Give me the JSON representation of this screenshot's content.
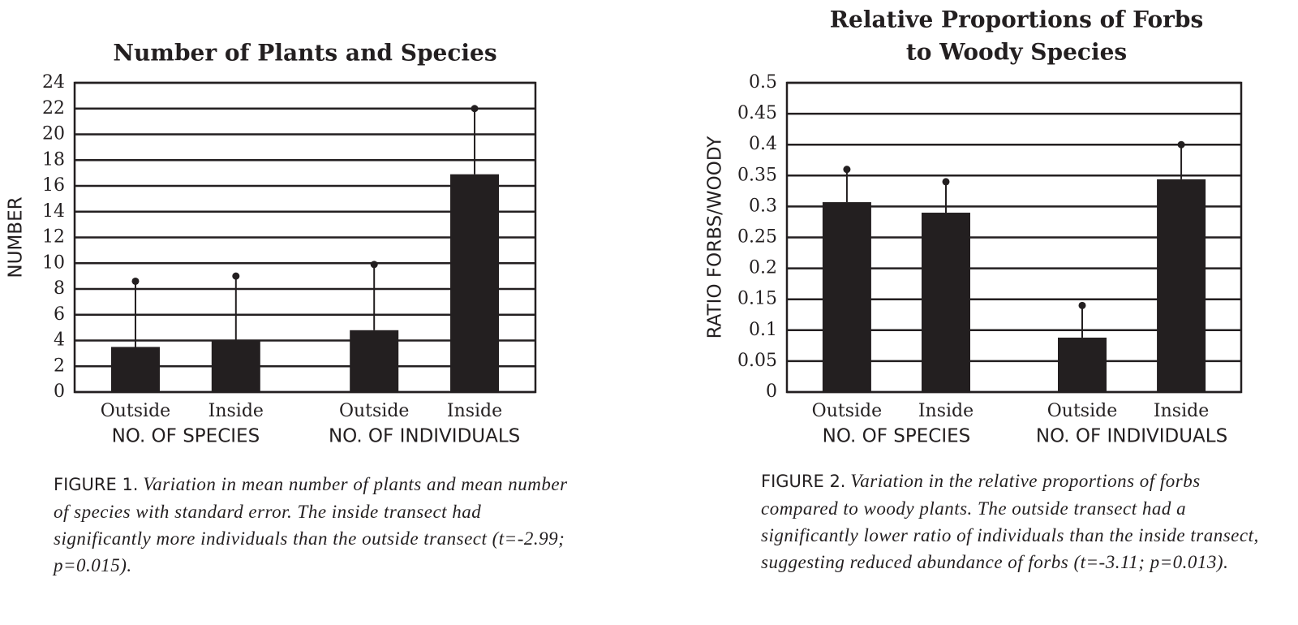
{
  "chart_data": [
    {
      "type": "bar",
      "title": [
        "Number of Plants and Species"
      ],
      "y_label": "NUMBER",
      "categories": [
        "Outside",
        "Inside",
        "Outside",
        "Inside"
      ],
      "group_labels": [
        "NO. OF SPECIES",
        "NO. OF INDIVIDUALS"
      ],
      "values": [
        3.5,
        4.0,
        4.8,
        16.9
      ],
      "errors": [
        5.1,
        5.0,
        5.1,
        5.1
      ],
      "color": "#231f20",
      "ylim": [
        0,
        24
      ],
      "yticks": [
        0,
        2,
        4,
        6,
        8,
        10,
        12,
        14,
        16,
        18,
        20,
        22,
        24
      ],
      "grid": true,
      "caption_label": "FIGURE 1.",
      "caption_text": "Variation in mean number of plants and mean number of species with standard error. The inside transect had significantly more individuals than the outside transect (t=-2.99; p=0.015)."
    },
    {
      "type": "bar",
      "title": [
        "Relative Proportions of Forbs",
        "to Woody Species"
      ],
      "y_label": "RATIO FORBS/WOODY",
      "categories": [
        "Outside",
        "Inside",
        "Outside",
        "Inside"
      ],
      "group_labels": [
        "NO. OF SPECIES",
        "NO. OF INDIVIDUALS"
      ],
      "values": [
        0.307,
        0.29,
        0.088,
        0.344
      ],
      "errors": [
        0.053,
        0.05,
        0.052,
        0.056
      ],
      "color": "#231f20",
      "ylim": [
        0,
        0.5
      ],
      "yticks": [
        0,
        0.05,
        0.1,
        0.15,
        0.2,
        0.25,
        0.3,
        0.35,
        0.4,
        0.45,
        0.5
      ],
      "grid": true,
      "caption_label": "FIGURE 2.",
      "caption_text": "Variation in the relative proportions of forbs compared to woody plants. The outside transect had a significantly lower ratio of individuals than the inside transect, suggesting reduced abundance of forbs (t=-3.11; p=0.013)."
    }
  ]
}
